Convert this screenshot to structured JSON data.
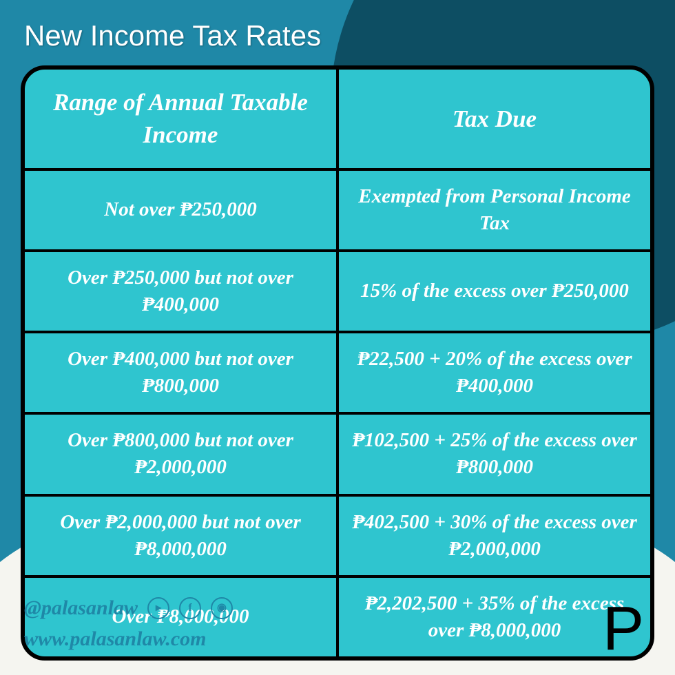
{
  "title": "New Income Tax Rates",
  "colors": {
    "teal_bg": "#1f88a7",
    "dark_circle": "#0d4e63",
    "cell_bg": "#2fc5cf",
    "border": "#000000",
    "text": "#ffffff",
    "cream": "#f5f5f0"
  },
  "table": {
    "headers": {
      "col1": "Range of Annual Taxable Income",
      "col2": "Tax Due"
    },
    "rows": [
      {
        "range": "Not over ₱250,000",
        "tax": "Exempted from Personal Income Tax"
      },
      {
        "range": "Over ₱250,000 but not over ₱400,000",
        "tax": "15% of the excess over ₱250,000"
      },
      {
        "range": "Over ₱400,000 but not over ₱800,000",
        "tax": "₱22,500 + 20% of the excess over ₱400,000"
      },
      {
        "range": "Over ₱800,000 but not over ₱2,000,000",
        "tax": "₱102,500 + 25% of the excess over ₱800,000"
      },
      {
        "range": "Over ₱2,000,000 but not over ₱8,000,000",
        "tax": "₱402,500 + 30% of the excess over ₱2,000,000"
      },
      {
        "range": "Over ₱8,000,000",
        "tax": "₱2,202,500 + 35% of the excess over ₱8,000,000"
      }
    ]
  },
  "footer": {
    "handle": "@palasanlaw",
    "website": "www.palasanlaw.com",
    "icons": [
      "youtube",
      "facebook",
      "instagram"
    ]
  },
  "logo_text": "P"
}
